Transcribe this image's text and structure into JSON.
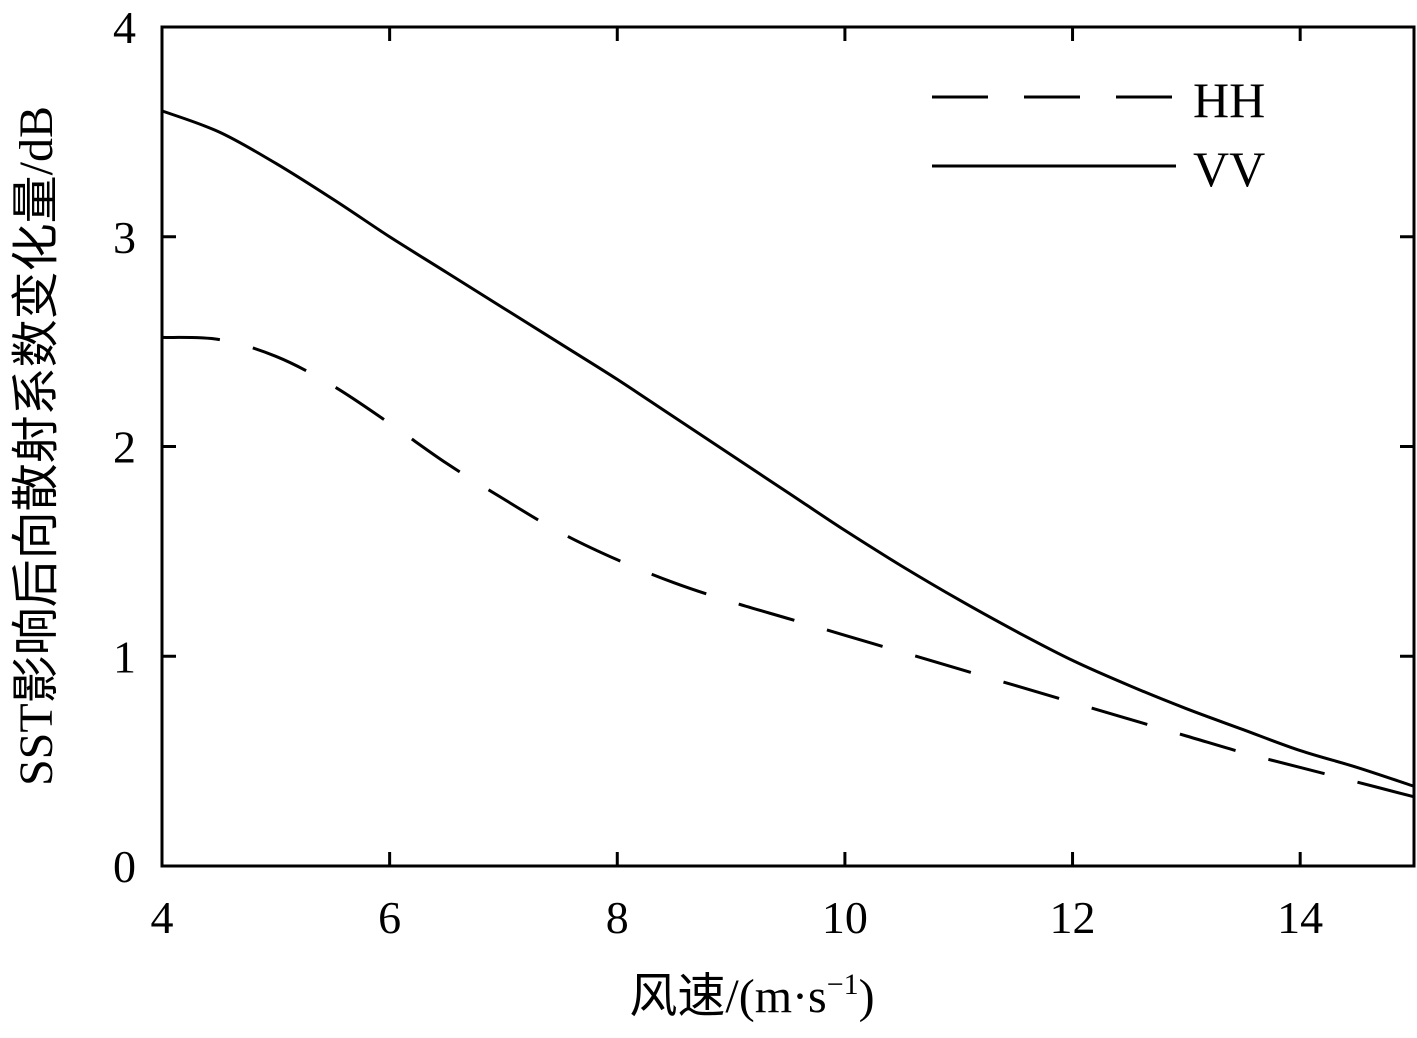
{
  "chart_data": {
    "type": "line",
    "title": "",
    "xlabel": "风速/(m·s",
    "xlabel_sup": "−1",
    "xlabel_close": ")",
    "ylabel": "SST影响后向散射系数变化量/dB",
    "xlim": [
      4,
      15
    ],
    "ylim": [
      0,
      4
    ],
    "xticks": [
      4,
      6,
      8,
      10,
      12,
      14
    ],
    "yticks": [
      0,
      1,
      2,
      3,
      4
    ],
    "grid": false,
    "legend_position": "top-right",
    "series": [
      {
        "name": "HH",
        "style": "dashed",
        "color": "#000000",
        "x": [
          4.0,
          4.5,
          5.0,
          5.5,
          6.0,
          6.5,
          7.0,
          7.5,
          8.0,
          8.5,
          9.0,
          9.5,
          10.0,
          10.5,
          11.0,
          11.5,
          12.0,
          12.5,
          13.0,
          13.5,
          14.0,
          14.5,
          15.0
        ],
        "y": [
          2.52,
          2.51,
          2.43,
          2.29,
          2.11,
          1.92,
          1.75,
          1.59,
          1.46,
          1.35,
          1.26,
          1.18,
          1.1,
          1.02,
          0.94,
          0.86,
          0.78,
          0.7,
          0.62,
          0.54,
          0.47,
          0.4,
          0.33
        ]
      },
      {
        "name": "VV",
        "style": "solid",
        "color": "#000000",
        "x": [
          4.0,
          4.5,
          5.0,
          5.5,
          6.0,
          6.5,
          7.0,
          7.5,
          8.0,
          8.5,
          9.0,
          9.5,
          10.0,
          10.5,
          11.0,
          11.5,
          12.0,
          12.5,
          13.0,
          13.5,
          14.0,
          14.5,
          15.0
        ],
        "y": [
          3.6,
          3.5,
          3.35,
          3.18,
          3.0,
          2.83,
          2.66,
          2.49,
          2.32,
          2.14,
          1.96,
          1.78,
          1.6,
          1.43,
          1.27,
          1.12,
          0.98,
          0.86,
          0.75,
          0.65,
          0.55,
          0.47,
          0.38
        ]
      }
    ]
  }
}
